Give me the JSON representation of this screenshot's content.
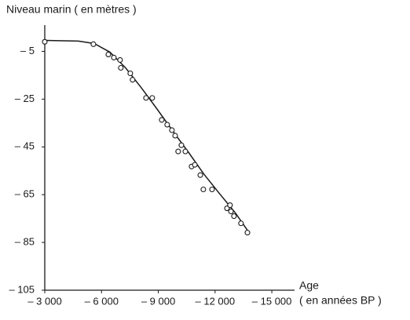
{
  "chart_data": {
    "type": "scatter",
    "title": "Niveau marin ( en mètres )",
    "x_label": "Age",
    "x_unit": "( en années BP )",
    "xlim": [
      -3000,
      -16200
    ],
    "ylim": [
      -105,
      6
    ],
    "xticks": [
      {
        "value": -3000,
        "label": "– 3 000"
      },
      {
        "value": -6000,
        "label": "– 6 000"
      },
      {
        "value": -9000,
        "label": "– 9 000"
      },
      {
        "value": -12000,
        "label": "– 12 000"
      },
      {
        "value": -15000,
        "label": "– 15 000"
      }
    ],
    "yticks": [
      {
        "value": -5,
        "label": "– 5"
      },
      {
        "value": -25,
        "label": "– 25"
      },
      {
        "value": -45,
        "label": "– 45"
      },
      {
        "value": -65,
        "label": "– 65"
      },
      {
        "value": -85,
        "label": "– 85"
      },
      {
        "value": -105,
        "label": "– 105"
      }
    ],
    "color": "#1a1a1a",
    "series": [
      {
        "type": "scatter",
        "x": [
          -3000,
          -5570,
          -6360,
          -6650,
          -6980,
          -7020,
          -7520,
          -7640,
          -8350,
          -8680,
          -9180,
          -9470,
          -9720,
          -9890,
          -10220,
          -10050,
          -10430,
          -10760,
          -10930,
          -11220,
          -11380,
          -11840,
          -12630,
          -12790,
          -12840,
          -13000,
          -13370,
          -13710
        ],
        "values": [
          -1,
          -2,
          -6.3,
          -7.6,
          -8.6,
          -11.9,
          -14.2,
          -16.9,
          -24.5,
          -24.5,
          -33.7,
          -35.7,
          -38,
          -40.3,
          -44.3,
          -46.9,
          -46.9,
          -53.2,
          -52.5,
          -56.8,
          -62.8,
          -62.8,
          -70.7,
          -69.4,
          -72,
          -74,
          -77,
          -80.9
        ]
      },
      {
        "type": "line",
        "x": [
          -3000,
          -4780,
          -5610,
          -6440,
          -7270,
          -8100,
          -8930,
          -9760,
          -10590,
          -11420,
          -12250,
          -13080,
          -13710
        ],
        "values": [
          -0.4,
          -0.7,
          -1.7,
          -5.3,
          -11.9,
          -20.2,
          -29.1,
          -38.3,
          -47.2,
          -56.5,
          -64.7,
          -72.7,
          -79.9
        ]
      }
    ]
  }
}
